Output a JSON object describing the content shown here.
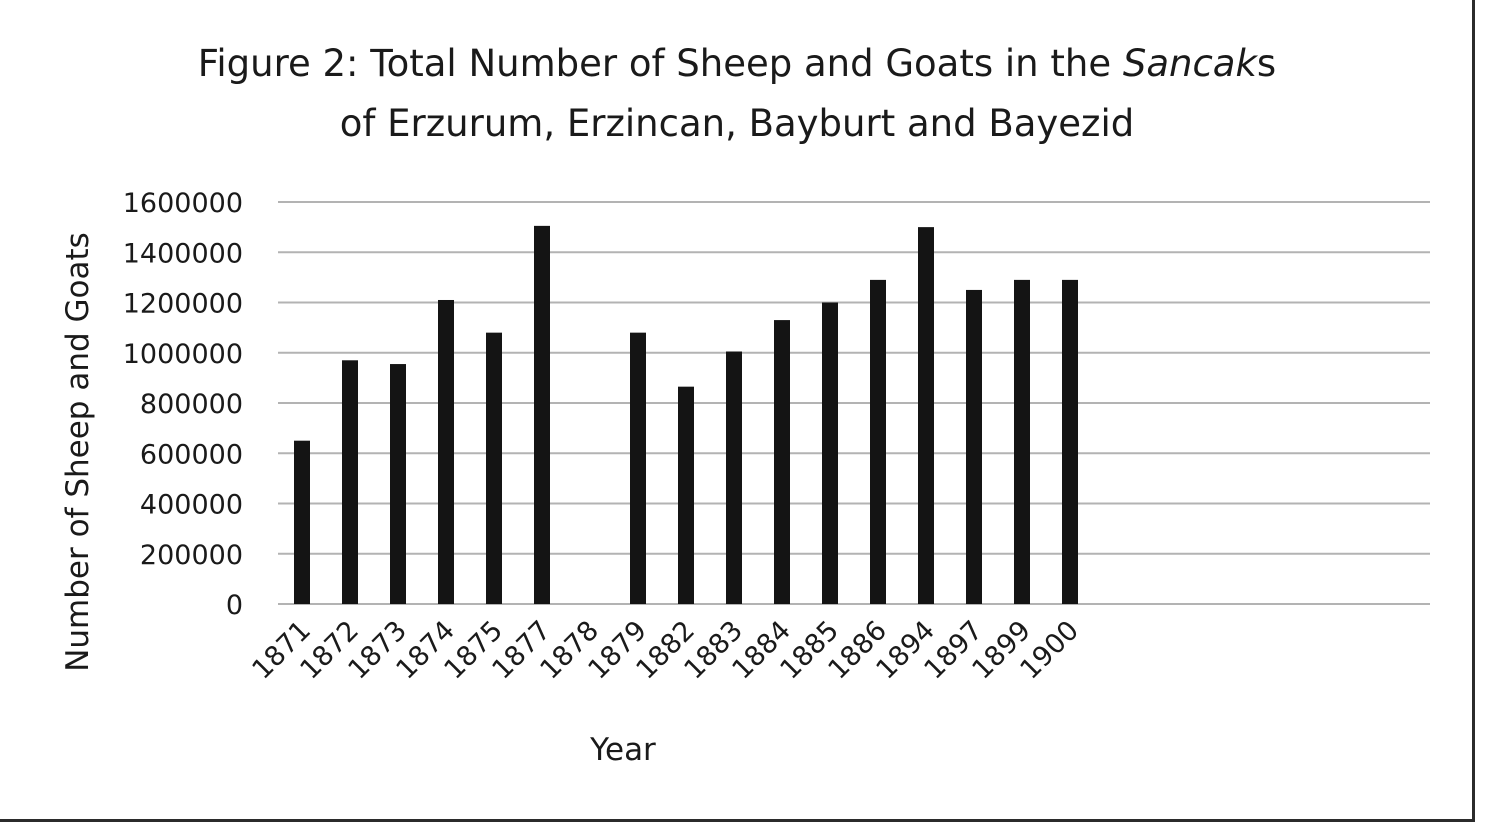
{
  "chart_data": {
    "type": "bar",
    "title_parts": [
      {
        "line": 1,
        "text": "Figure 2: Total Number of Sheep and Goats in the ",
        "italic": false
      },
      {
        "line": 1,
        "text": "Sancak",
        "italic": true
      },
      {
        "line": 1,
        "text": "s",
        "italic": false
      },
      {
        "line": 2,
        "text": "of Erzurum, Erzincan, Bayburt and Bayezid",
        "italic": false
      }
    ],
    "xlabel": "Year",
    "ylabel": "Number of Sheep and Goats",
    "categories": [
      "1871",
      "1872",
      "1873",
      "1874",
      "1875",
      "1877",
      "1878",
      "1879",
      "1882",
      "1883",
      "1884",
      "1885",
      "1886",
      "1894",
      "1897",
      "1899",
      "1900"
    ],
    "values": [
      650000,
      970000,
      955000,
      1210000,
      1080000,
      1505000,
      null,
      1080000,
      865000,
      1005000,
      1130000,
      1200000,
      1290000,
      1500000,
      1250000,
      1290000,
      1290000
    ],
    "ylim": [
      0,
      1600000
    ],
    "yticks": [
      "0",
      "200000",
      "400000",
      "600000",
      "800000",
      "1000000",
      "1200000",
      "1400000",
      "1600000"
    ],
    "grid": true,
    "legend": "none",
    "bar_color": "#141414"
  }
}
